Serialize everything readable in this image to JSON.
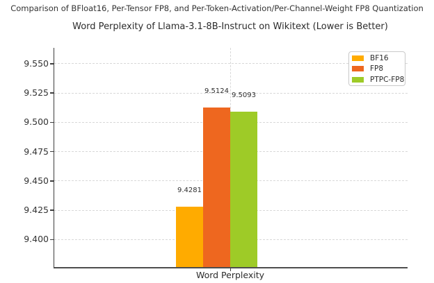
{
  "figure": {
    "suptitle": "Comparison of BFloat16, Per-Tensor FP8, and Per-Token-Activation/Per-Channel-Weight FP8 Quantization"
  },
  "chart_data": {
    "type": "bar",
    "title": "Word Perplexity of Llama-3.1-8B-Instruct on Wikitext (Lower is Better)",
    "xlabel": "Word Perplexity",
    "ylabel": "",
    "categories": [
      "Word Perplexity"
    ],
    "series": [
      {
        "name": "BF16",
        "values": [
          9.4281
        ],
        "label": "9.4281",
        "color": "#FFAB00"
      },
      {
        "name": "FP8",
        "values": [
          9.5124
        ],
        "label": "9.5124",
        "color": "#EE671F"
      },
      {
        "name": "PTPC-FP8",
        "values": [
          9.5093
        ],
        "label": "9.5093",
        "color": "#9ECB27"
      }
    ],
    "yticks": [
      9.4,
      9.425,
      9.45,
      9.475,
      9.5,
      9.525,
      9.55
    ],
    "ylim": [
      9.3765,
      9.5635
    ],
    "grid": true,
    "grid_style": "dashed",
    "legend_position": "upper right",
    "spines": [
      "left",
      "bottom"
    ]
  }
}
